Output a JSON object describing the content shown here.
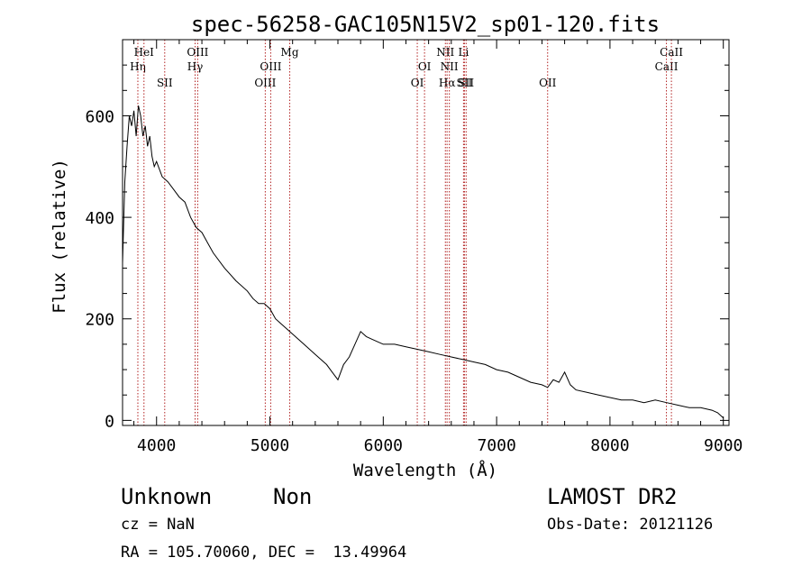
{
  "chart_data": {
    "type": "line",
    "title": "spec-56258-GAC105N15V2_sp01-120.fits",
    "xlabel": "Wavelength (Å)",
    "ylabel": "Flux (relative)",
    "xlim": [
      3700,
      9050
    ],
    "ylim": [
      -10,
      750
    ],
    "x_ticks": [
      4000,
      5000,
      6000,
      7000,
      8000,
      9000
    ],
    "y_ticks": [
      0,
      200,
      400,
      600
    ],
    "grid": false,
    "series": [
      {
        "x": [
          3700,
          3720,
          3740,
          3760,
          3780,
          3800,
          3820,
          3840,
          3860,
          3880,
          3900,
          3920,
          3940,
          3960,
          3980,
          4000,
          4050,
          4100,
          4150,
          4200,
          4250,
          4300,
          4350,
          4400,
          4450,
          4500,
          4600,
          4700,
          4800,
          4850,
          4900,
          4950,
          5000,
          5050,
          5100,
          5200,
          5300,
          5400,
          5500,
          5550,
          5600,
          5650,
          5700,
          5750,
          5800,
          5850,
          5900,
          6000,
          6100,
          6200,
          6300,
          6400,
          6500,
          6600,
          6700,
          6800,
          6900,
          7000,
          7100,
          7200,
          7300,
          7400,
          7450,
          7500,
          7550,
          7600,
          7650,
          7700,
          7800,
          7900,
          8000,
          8100,
          8200,
          8300,
          8400,
          8500,
          8600,
          8700,
          8800,
          8900,
          8950,
          9000
        ],
        "y": [
          310,
          470,
          540,
          600,
          580,
          610,
          560,
          620,
          600,
          560,
          580,
          540,
          560,
          520,
          500,
          510,
          480,
          470,
          455,
          440,
          430,
          400,
          380,
          370,
          350,
          330,
          300,
          275,
          255,
          240,
          230,
          230,
          220,
          200,
          190,
          170,
          150,
          130,
          110,
          95,
          80,
          110,
          125,
          150,
          175,
          165,
          160,
          150,
          150,
          145,
          140,
          135,
          130,
          125,
          120,
          115,
          110,
          100,
          95,
          85,
          75,
          70,
          65,
          80,
          75,
          95,
          70,
          60,
          55,
          50,
          45,
          40,
          40,
          35,
          40,
          35,
          30,
          25,
          25,
          20,
          15,
          5
        ],
        "color": "#000000"
      }
    ],
    "lines": [
      {
        "x": 3835,
        "label": "Hη",
        "row": 2
      },
      {
        "x": 3889,
        "label": "HeI",
        "row": 1
      },
      {
        "x": 4072,
        "label": "SII",
        "row": 3
      },
      {
        "x": 4340,
        "label": "Hγ",
        "row": 2
      },
      {
        "x": 4363,
        "label": "OIII",
        "row": 1
      },
      {
        "x": 4959,
        "label": "OIII",
        "row": 3
      },
      {
        "x": 5007,
        "label": "OIII",
        "row": 2
      },
      {
        "x": 5175,
        "label": "Mg",
        "row": 1
      },
      {
        "x": 6300,
        "label": "OI",
        "row": 3
      },
      {
        "x": 6364,
        "label": "OI",
        "row": 2
      },
      {
        "x": 6548,
        "label": "NII",
        "row": 1
      },
      {
        "x": 6563,
        "label": "Hα",
        "row": 3
      },
      {
        "x": 6583,
        "label": "NII",
        "row": 2
      },
      {
        "x": 6708,
        "label": "Li",
        "row": 1
      },
      {
        "x": 6716,
        "label": "SII",
        "row": 3
      },
      {
        "x": 6731,
        "label": "SII",
        "row": 3
      },
      {
        "x": 7450,
        "label": "OII",
        "row": 3
      },
      {
        "x": 8498,
        "label": "CaII",
        "row": 2
      },
      {
        "x": 8542,
        "label": "CaII",
        "row": 1
      }
    ]
  },
  "info": {
    "class": "Unknown",
    "subclass": "Non",
    "survey": "LAMOST DR2",
    "cz": "cz = NaN",
    "obs_date": "Obs-Date: 20121126",
    "radec": "RA = 105.70060, DEC =  13.49964"
  }
}
